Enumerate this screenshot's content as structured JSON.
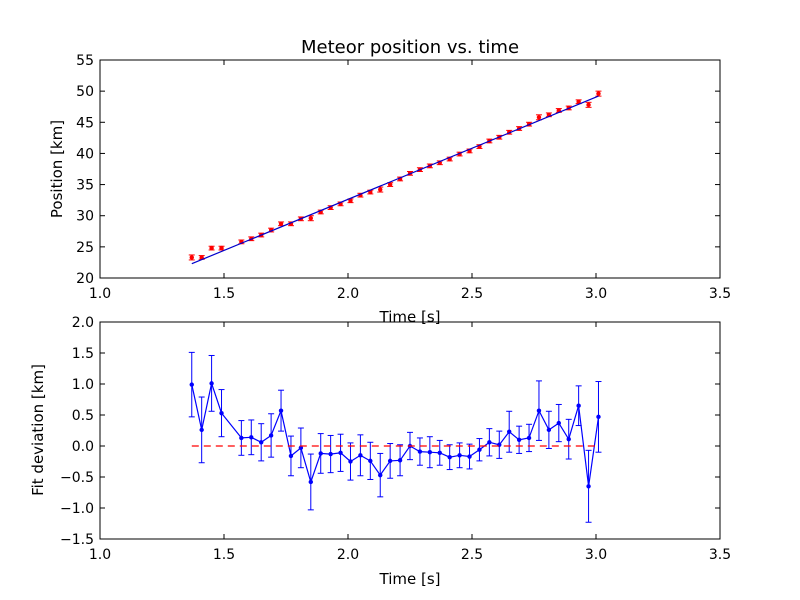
{
  "chart_data": [
    {
      "type": "scatter",
      "title": "Meteor position vs. time",
      "xlabel": "Time [s]",
      "ylabel": "Position [km]",
      "xlim": [
        1.0,
        3.5
      ],
      "ylim": [
        20,
        55
      ],
      "xticks": [
        "1.0",
        "1.5",
        "2.0",
        "2.5",
        "3.0",
        "3.5"
      ],
      "yticks": [
        "20",
        "25",
        "30",
        "35",
        "40",
        "45",
        "50",
        "55"
      ],
      "grid": false,
      "series": [
        {
          "kind": "points-with-errorbars",
          "color": "#ff0000",
          "x": [
            1.37,
            1.41,
            1.45,
            1.49,
            1.57,
            1.61,
            1.65,
            1.69,
            1.73,
            1.77,
            1.81,
            1.85,
            1.89,
            1.93,
            1.97,
            2.01,
            2.05,
            2.09,
            2.13,
            2.17,
            2.21,
            2.25,
            2.29,
            2.33,
            2.37,
            2.41,
            2.45,
            2.49,
            2.53,
            2.57,
            2.61,
            2.65,
            2.69,
            2.73,
            2.77,
            2.81,
            2.85,
            2.89,
            2.93,
            2.97,
            3.01
          ],
          "y": [
            23.3,
            23.3,
            24.8,
            24.8,
            25.8,
            26.3,
            26.9,
            27.7,
            28.7,
            28.7,
            29.5,
            29.6,
            30.6,
            31.3,
            31.9,
            32.4,
            33.3,
            33.8,
            34.2,
            35.0,
            35.9,
            36.8,
            37.4,
            38.0,
            38.5,
            39.1,
            39.9,
            40.4,
            41.1,
            42.0,
            42.6,
            43.4,
            44.0,
            44.7,
            45.8,
            46.2,
            46.9,
            47.3,
            48.3,
            47.8,
            49.6
          ],
          "yerr": [
            0.4,
            0.3,
            0.3,
            0.3,
            0.3,
            0.3,
            0.3,
            0.3,
            0.3,
            0.3,
            0.3,
            0.4,
            0.3,
            0.3,
            0.3,
            0.3,
            0.3,
            0.3,
            0.4,
            0.3,
            0.3,
            0.3,
            0.3,
            0.3,
            0.3,
            0.3,
            0.3,
            0.3,
            0.3,
            0.3,
            0.3,
            0.3,
            0.3,
            0.3,
            0.4,
            0.3,
            0.3,
            0.3,
            0.3,
            0.4,
            0.4
          ]
        },
        {
          "kind": "line",
          "color": "#0000cc",
          "x": [
            1.37,
            3.01
          ],
          "y": [
            22.3,
            49.2
          ]
        }
      ]
    },
    {
      "type": "line",
      "title": "",
      "xlabel": "Time [s]",
      "ylabel": "Fit deviation [km]",
      "xlim": [
        1.0,
        3.5
      ],
      "ylim": [
        -1.5,
        2.0
      ],
      "xticks": [
        "1.0",
        "1.5",
        "2.0",
        "2.5",
        "3.0",
        "3.5"
      ],
      "yticks": [
        "−1.5",
        "−1.0",
        "−0.5",
        "0.0",
        "0.5",
        "1.0",
        "1.5",
        "2.0"
      ],
      "grid": false,
      "series": [
        {
          "kind": "line-with-errorbars",
          "color": "#0000ff",
          "x": [
            1.37,
            1.41,
            1.45,
            1.49,
            1.57,
            1.61,
            1.65,
            1.69,
            1.73,
            1.77,
            1.81,
            1.85,
            1.89,
            1.93,
            1.97,
            2.01,
            2.05,
            2.09,
            2.13,
            2.17,
            2.21,
            2.25,
            2.29,
            2.33,
            2.37,
            2.41,
            2.45,
            2.49,
            2.53,
            2.57,
            2.61,
            2.65,
            2.69,
            2.73,
            2.77,
            2.81,
            2.85,
            2.89,
            2.93,
            2.97,
            3.01
          ],
          "y": [
            0.99,
            0.26,
            1.01,
            0.53,
            0.13,
            0.14,
            0.06,
            0.17,
            0.57,
            -0.16,
            -0.03,
            -0.58,
            -0.12,
            -0.13,
            -0.11,
            -0.25,
            -0.15,
            -0.24,
            -0.47,
            -0.24,
            -0.23,
            0.0,
            -0.09,
            -0.1,
            -0.11,
            -0.18,
            -0.15,
            -0.17,
            -0.06,
            0.06,
            0.02,
            0.23,
            0.1,
            0.13,
            0.57,
            0.26,
            0.37,
            0.11,
            0.65,
            -0.65,
            0.47
          ],
          "yerr": [
            0.52,
            0.53,
            0.45,
            0.38,
            0.28,
            0.28,
            0.3,
            0.35,
            0.33,
            0.32,
            0.32,
            0.45,
            0.32,
            0.3,
            0.3,
            0.3,
            0.33,
            0.3,
            0.35,
            0.28,
            0.25,
            0.22,
            0.22,
            0.25,
            0.2,
            0.2,
            0.2,
            0.2,
            0.18,
            0.22,
            0.22,
            0.33,
            0.22,
            0.22,
            0.48,
            0.3,
            0.3,
            0.32,
            0.32,
            0.58,
            0.57
          ]
        },
        {
          "kind": "dashed-line",
          "color": "#ff0000",
          "x": [
            1.37,
            3.01
          ],
          "y": [
            0.0,
            0.0
          ]
        }
      ]
    }
  ]
}
